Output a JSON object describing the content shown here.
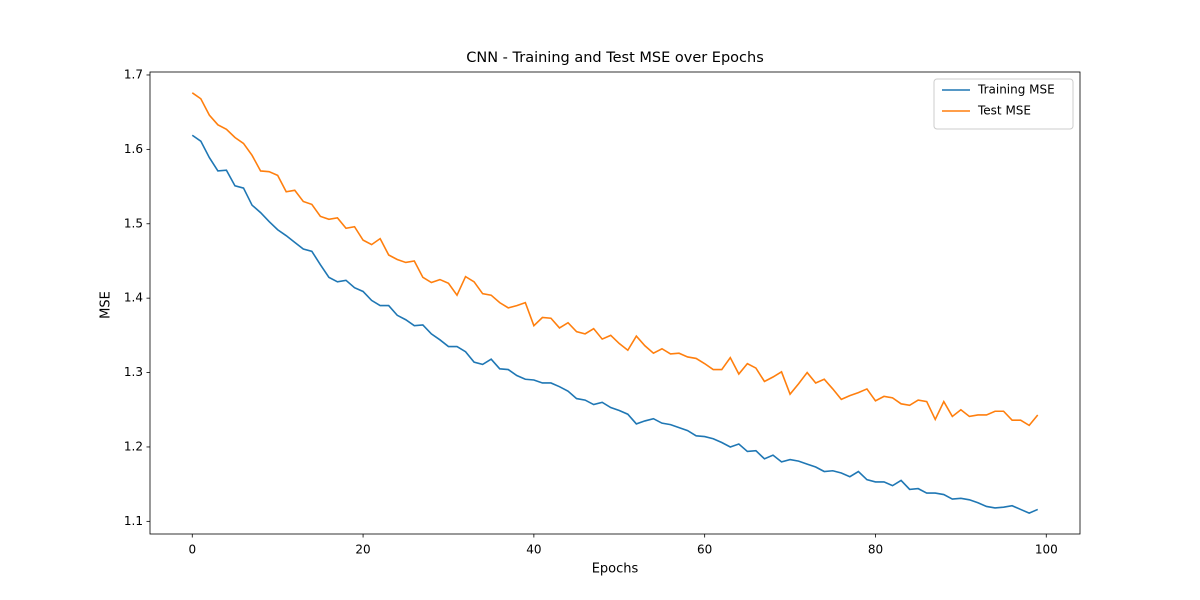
{
  "chart_data": {
    "type": "line",
    "title": "CNN - Training and Test MSE over Epochs",
    "xlabel": "Epochs",
    "ylabel": "MSE",
    "x": [
      0,
      1,
      2,
      3,
      4,
      5,
      6,
      7,
      8,
      9,
      10,
      11,
      12,
      13,
      14,
      15,
      16,
      17,
      18,
      19,
      20,
      21,
      22,
      23,
      24,
      25,
      26,
      27,
      28,
      29,
      30,
      31,
      32,
      33,
      34,
      35,
      36,
      37,
      38,
      39,
      40,
      41,
      42,
      43,
      44,
      45,
      46,
      47,
      48,
      49,
      50,
      51,
      52,
      53,
      54,
      55,
      56,
      57,
      58,
      59,
      60,
      61,
      62,
      63,
      64,
      65,
      66,
      67,
      68,
      69,
      70,
      71,
      72,
      73,
      74,
      75,
      76,
      77,
      78,
      79,
      80,
      81,
      82,
      83,
      84,
      85,
      86,
      87,
      88,
      89,
      90,
      91,
      92,
      93,
      94,
      95,
      96,
      97,
      98,
      99
    ],
    "series": [
      {
        "name": "Training MSE",
        "color": "#1f77b4",
        "values": [
          1.619,
          1.611,
          1.589,
          1.571,
          1.572,
          1.551,
          1.548,
          1.525,
          1.515,
          1.503,
          1.492,
          1.484,
          1.475,
          1.466,
          1.463,
          1.445,
          1.428,
          1.422,
          1.424,
          1.414,
          1.409,
          1.397,
          1.39,
          1.39,
          1.377,
          1.371,
          1.363,
          1.364,
          1.352,
          1.344,
          1.335,
          1.335,
          1.328,
          1.314,
          1.311,
          1.318,
          1.305,
          1.304,
          1.296,
          1.291,
          1.29,
          1.286,
          1.286,
          1.281,
          1.275,
          1.265,
          1.263,
          1.257,
          1.26,
          1.253,
          1.249,
          1.244,
          1.231,
          1.235,
          1.238,
          1.232,
          1.23,
          1.226,
          1.222,
          1.215,
          1.214,
          1.211,
          1.206,
          1.2,
          1.204,
          1.194,
          1.195,
          1.184,
          1.189,
          1.18,
          1.183,
          1.181,
          1.177,
          1.173,
          1.167,
          1.168,
          1.165,
          1.16,
          1.167,
          1.156,
          1.153,
          1.153,
          1.148,
          1.155,
          1.143,
          1.144,
          1.138,
          1.138,
          1.136,
          1.13,
          1.131,
          1.129,
          1.125,
          1.12,
          1.118,
          1.119,
          1.121,
          1.116,
          1.111,
          1.116
        ]
      },
      {
        "name": "Test MSE",
        "color": "#ff7f0e",
        "values": [
          1.676,
          1.668,
          1.646,
          1.633,
          1.627,
          1.616,
          1.608,
          1.592,
          1.571,
          1.57,
          1.565,
          1.543,
          1.545,
          1.53,
          1.526,
          1.51,
          1.506,
          1.508,
          1.494,
          1.496,
          1.478,
          1.472,
          1.48,
          1.458,
          1.452,
          1.448,
          1.45,
          1.428,
          1.421,
          1.425,
          1.42,
          1.404,
          1.429,
          1.422,
          1.406,
          1.404,
          1.394,
          1.387,
          1.39,
          1.394,
          1.363,
          1.374,
          1.373,
          1.36,
          1.367,
          1.355,
          1.352,
          1.359,
          1.345,
          1.35,
          1.339,
          1.33,
          1.349,
          1.336,
          1.326,
          1.332,
          1.325,
          1.326,
          1.321,
          1.319,
          1.312,
          1.304,
          1.304,
          1.32,
          1.298,
          1.312,
          1.306,
          1.288,
          1.294,
          1.301,
          1.271,
          1.285,
          1.3,
          1.286,
          1.291,
          1.278,
          1.264,
          1.269,
          1.273,
          1.278,
          1.262,
          1.268,
          1.266,
          1.258,
          1.256,
          1.263,
          1.261,
          1.237,
          1.261,
          1.241,
          1.25,
          1.241,
          1.243,
          1.243,
          1.248,
          1.248,
          1.236,
          1.236,
          1.229,
          1.243
        ]
      }
    ],
    "xlim": [
      -4.95,
      103.95
    ],
    "ylim": [
      1.083,
      1.704
    ],
    "xticks": [
      0,
      20,
      40,
      60,
      80,
      100
    ],
    "yticks": [
      1.1,
      1.2,
      1.3,
      1.4,
      1.5,
      1.6,
      1.7
    ],
    "legend": "upper right",
    "grid": false
  }
}
